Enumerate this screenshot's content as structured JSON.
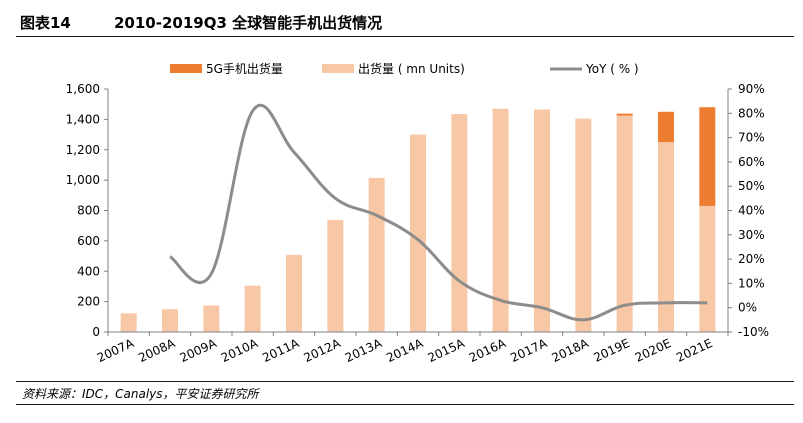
{
  "figure": {
    "number": "图表14",
    "title": "2010-2019Q3 全球智能手机出货情况",
    "source": "资料来源：IDC，Canalys，平安证券研究所"
  },
  "chart_data": {
    "type": "bar",
    "title": "2010-2019Q3 全球智能手机出货情况",
    "categories": [
      "2007A",
      "2008A",
      "2009A",
      "2010A",
      "2011A",
      "2012A",
      "2013A",
      "2014A",
      "2015A",
      "2016A",
      "2017A",
      "2018A",
      "2019E",
      "2020E",
      "2021E"
    ],
    "series": [
      {
        "name": "出货量 ( mn Units)",
        "kind": "bar-stacked",
        "axis": "left",
        "color": "#f8c8a6",
        "values": [
          123,
          150,
          175,
          305,
          508,
          738,
          1015,
          1300,
          1435,
          1470,
          1465,
          1405,
          1425,
          1250,
          830
        ]
      },
      {
        "name": "5G手机出货量",
        "kind": "bar-stacked",
        "axis": "left",
        "color": "#ed7d31",
        "values": [
          0,
          0,
          0,
          0,
          0,
          0,
          0,
          0,
          0,
          0,
          0,
          0,
          13,
          200,
          650
        ]
      },
      {
        "name": "YoY ( % )",
        "kind": "line",
        "axis": "right",
        "color": "#8c8c8c",
        "values": [
          null,
          21,
          14,
          81,
          64,
          45,
          38,
          28,
          11,
          3,
          0,
          -5,
          1,
          2,
          2
        ]
      }
    ],
    "legend": [
      "5G手机出货量",
      "出货量 ( mn Units)",
      "YoY ( % )"
    ],
    "legend_position": "top",
    "yleft": {
      "min": 0,
      "max": 1600,
      "ticks": [
        0,
        200,
        400,
        600,
        800,
        1000,
        1200,
        1400,
        1600
      ],
      "tick_labels": [
        "0",
        "200",
        "400",
        "600",
        "800",
        "1,000",
        "1,200",
        "1,400",
        "1,600"
      ]
    },
    "yright": {
      "min": -10,
      "max": 90,
      "ticks": [
        -10,
        0,
        10,
        20,
        30,
        40,
        50,
        60,
        70,
        80,
        90
      ],
      "tick_labels": [
        "-10%",
        "0%",
        "10%",
        "20%",
        "30%",
        "40%",
        "50%",
        "60%",
        "70%",
        "80%",
        "90%"
      ]
    },
    "grid": false
  }
}
